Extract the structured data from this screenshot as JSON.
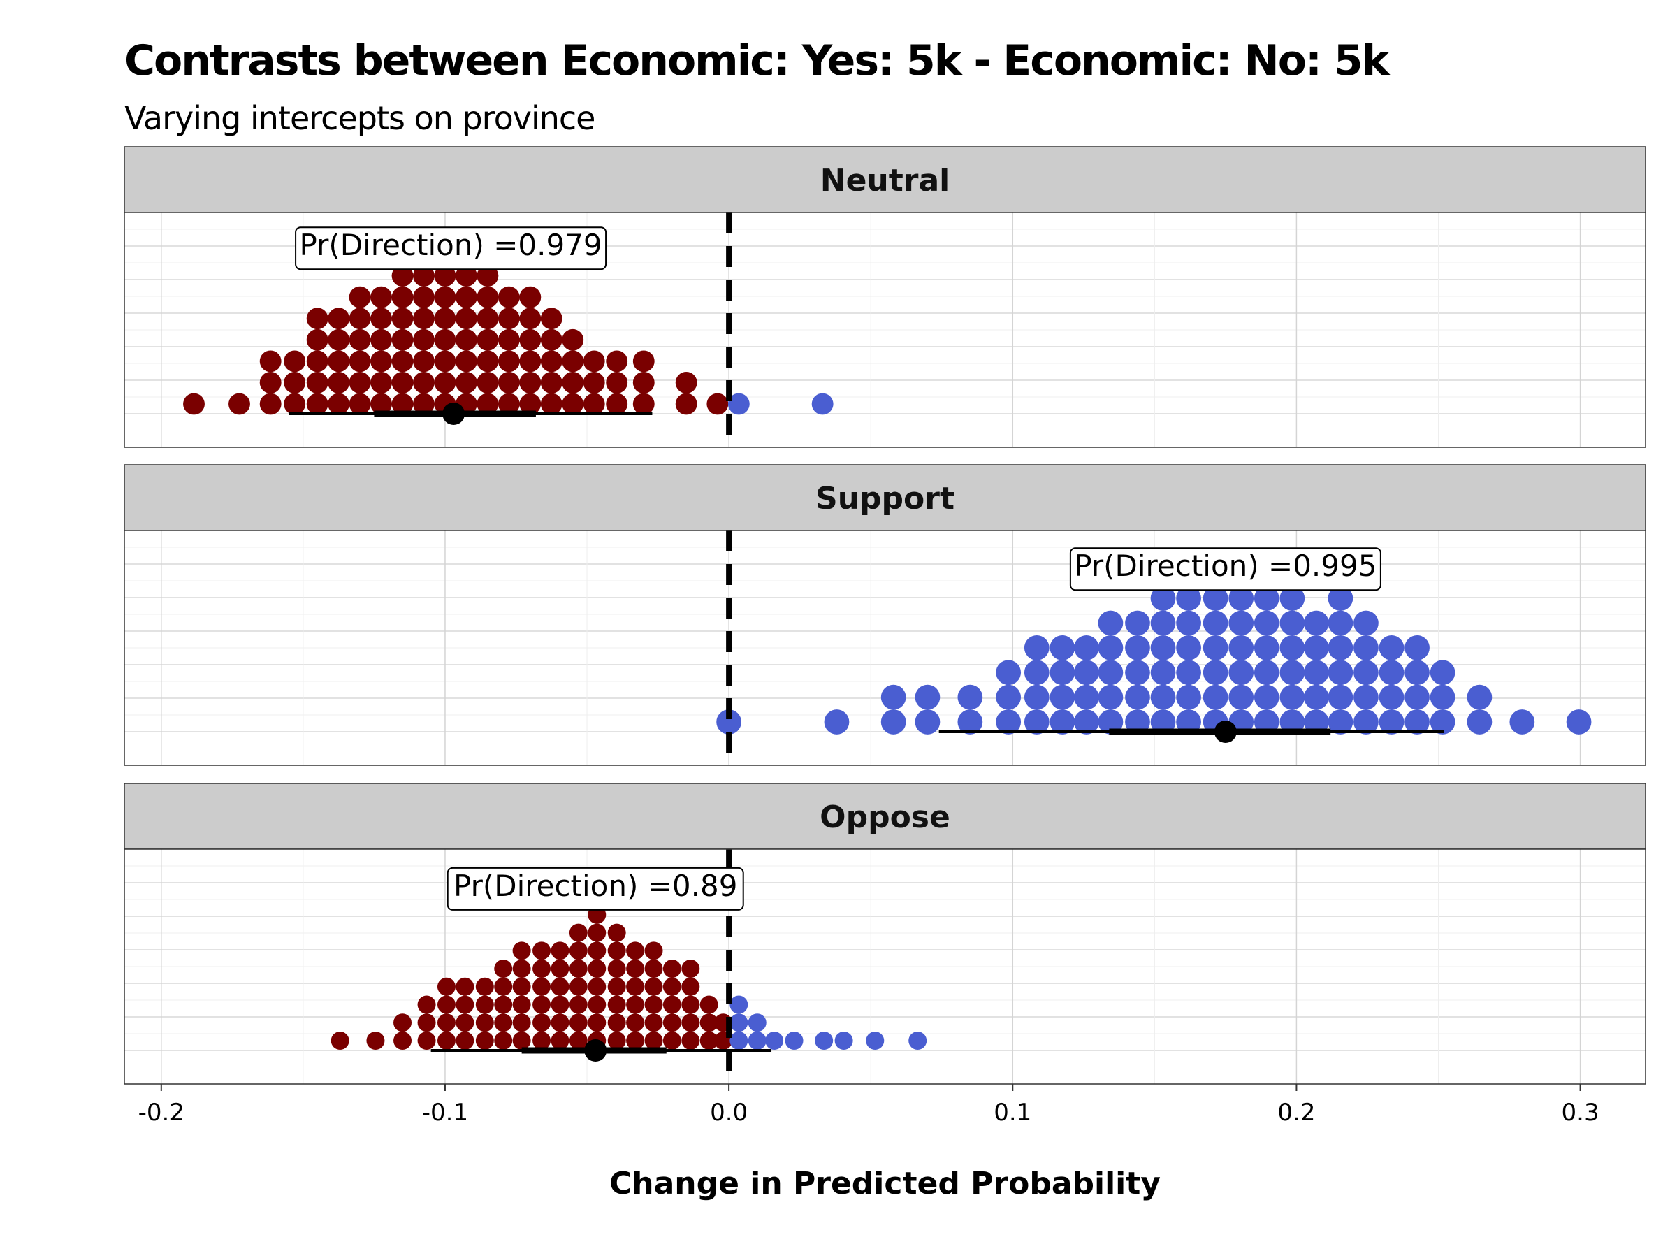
{
  "chart_data": {
    "type": "dotplot",
    "title": "Contrasts between Economic: Yes: 5k - Economic: No: 5k",
    "subtitle": "Varying intercepts on province",
    "xlabel": "Change in Predicted Probability",
    "xlim": [
      -0.213,
      0.323
    ],
    "x_ticks": [
      -0.2,
      -0.1,
      0.0,
      0.1,
      0.2,
      0.3
    ],
    "x_tick_labels": [
      "-0.2",
      "-0.1",
      "0.0",
      "0.1",
      "0.2",
      "0.3"
    ],
    "grid": true,
    "reference_line": 0,
    "colors": {
      "negative": "#7a0000",
      "positive": "#4a5ed1",
      "strip": "#cccccc",
      "interval": "#000000"
    },
    "panels": [
      {
        "name": "Neutral",
        "annotation": "Pr(Direction) =0.979",
        "annotation_x": -0.098,
        "point_estimate": -0.097,
        "interval_inner": [
          -0.125,
          -0.068
        ],
        "interval_outer": [
          -0.155,
          -0.027
        ],
        "dot_radius": 0.0038,
        "stacks": [
          {
            "x": -0.1885,
            "n": 1
          },
          {
            "x": -0.1725,
            "n": 1
          },
          {
            "x": -0.1615,
            "n": 3
          },
          {
            "x": -0.153,
            "n": 3
          },
          {
            "x": -0.145,
            "n": 5
          },
          {
            "x": -0.1375,
            "n": 5
          },
          {
            "x": -0.13,
            "n": 6
          },
          {
            "x": -0.1225,
            "n": 6
          },
          {
            "x": -0.115,
            "n": 7
          },
          {
            "x": -0.1075,
            "n": 7
          },
          {
            "x": -0.1,
            "n": 7
          },
          {
            "x": -0.0925,
            "n": 7
          },
          {
            "x": -0.085,
            "n": 7
          },
          {
            "x": -0.0775,
            "n": 6
          },
          {
            "x": -0.07,
            "n": 6
          },
          {
            "x": -0.0625,
            "n": 5
          },
          {
            "x": -0.055,
            "n": 4
          },
          {
            "x": -0.0475,
            "n": 3
          },
          {
            "x": -0.0395,
            "n": 3
          },
          {
            "x": -0.03,
            "n": 3
          },
          {
            "x": -0.015,
            "n": 2
          },
          {
            "x": -0.004,
            "n": 1
          },
          {
            "x": 0.0035,
            "n": 1
          },
          {
            "x": 0.033,
            "n": 1
          }
        ]
      },
      {
        "name": "Support",
        "annotation": "Pr(Direction) =0.995",
        "annotation_x": 0.175,
        "point_estimate": 0.175,
        "interval_inner": [
          0.134,
          0.212
        ],
        "interval_outer": [
          0.074,
          0.252
        ],
        "dot_radius": 0.0044,
        "stacks": [
          {
            "x": 0.0,
            "n": 1
          },
          {
            "x": 0.038,
            "n": 1
          },
          {
            "x": 0.058,
            "n": 2
          },
          {
            "x": 0.07,
            "n": 2
          },
          {
            "x": 0.085,
            "n": 2
          },
          {
            "x": 0.0985,
            "n": 3
          },
          {
            "x": 0.1085,
            "n": 4
          },
          {
            "x": 0.1175,
            "n": 4
          },
          {
            "x": 0.126,
            "n": 4
          },
          {
            "x": 0.1345,
            "n": 5
          },
          {
            "x": 0.144,
            "n": 5
          },
          {
            "x": 0.153,
            "n": 6
          },
          {
            "x": 0.162,
            "n": 6
          },
          {
            "x": 0.1715,
            "n": 6
          },
          {
            "x": 0.1805,
            "n": 6
          },
          {
            "x": 0.1895,
            "n": 6
          },
          {
            "x": 0.1985,
            "n": 6
          },
          {
            "x": 0.207,
            "n": 5
          },
          {
            "x": 0.2155,
            "n": 6
          },
          {
            "x": 0.2245,
            "n": 5
          },
          {
            "x": 0.2335,
            "n": 4
          },
          {
            "x": 0.2425,
            "n": 4
          },
          {
            "x": 0.2515,
            "n": 3
          },
          {
            "x": 0.2645,
            "n": 2
          },
          {
            "x": 0.2795,
            "n": 1
          },
          {
            "x": 0.2995,
            "n": 1
          }
        ]
      },
      {
        "name": "Oppose",
        "annotation": "Pr(Direction) =0.89",
        "annotation_x": -0.047,
        "point_estimate": -0.047,
        "interval_inner": [
          -0.073,
          -0.022
        ],
        "interval_outer": [
          -0.105,
          0.015
        ],
        "dot_radius": 0.0032,
        "stacks": [
          {
            "x": -0.137,
            "n": 1
          },
          {
            "x": -0.1245,
            "n": 1
          },
          {
            "x": -0.115,
            "n": 2
          },
          {
            "x": -0.1065,
            "n": 3
          },
          {
            "x": -0.0995,
            "n": 4
          },
          {
            "x": -0.093,
            "n": 4
          },
          {
            "x": -0.086,
            "n": 4
          },
          {
            "x": -0.0795,
            "n": 5
          },
          {
            "x": -0.073,
            "n": 6
          },
          {
            "x": -0.066,
            "n": 6
          },
          {
            "x": -0.0595,
            "n": 6
          },
          {
            "x": -0.053,
            "n": 7
          },
          {
            "x": -0.0465,
            "n": 8
          },
          {
            "x": -0.0395,
            "n": 7
          },
          {
            "x": -0.033,
            "n": 6
          },
          {
            "x": -0.0265,
            "n": 6
          },
          {
            "x": -0.02,
            "n": 5
          },
          {
            "x": -0.0135,
            "n": 5
          },
          {
            "x": -0.007,
            "n": 3
          },
          {
            "x": -0.002,
            "n": 2
          },
          {
            "x": 0.0035,
            "n": 3
          },
          {
            "x": 0.01,
            "n": 2
          },
          {
            "x": 0.016,
            "n": 1
          },
          {
            "x": 0.023,
            "n": 1
          },
          {
            "x": 0.0335,
            "n": 1
          },
          {
            "x": 0.0405,
            "n": 1
          },
          {
            "x": 0.0515,
            "n": 1
          },
          {
            "x": 0.0665,
            "n": 1
          }
        ]
      }
    ]
  }
}
